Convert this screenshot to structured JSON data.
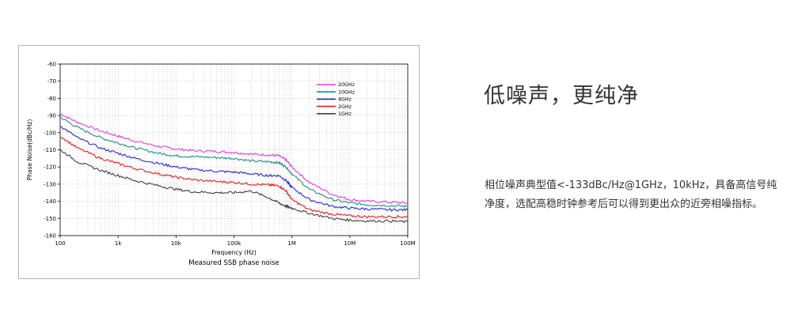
{
  "headline": "低噪声，更纯净",
  "description": {
    "line1": "相位噪声典型值<-133dBc/Hz@1GHz，10kHz，具备高信号纯",
    "line2": "净度，选配高稳时钟参考后可以得到更出众的近旁相噪指标。"
  },
  "chart_data": {
    "type": "line",
    "title": "Measured SSB phase noise",
    "xlabel": "Frequency (Hz)",
    "ylabel": "Phase Noise(dBc/Hz)",
    "x_scale": "log",
    "xlim": [
      100,
      100000000
    ],
    "ylim": [
      -160,
      -60
    ],
    "x_ticks": [
      100,
      1000,
      10000,
      100000,
      1000000,
      10000000,
      100000000
    ],
    "x_tick_labels": [
      "100",
      "1k",
      "10k",
      "100k",
      "1M",
      "10M",
      "100M"
    ],
    "y_ticks": [
      -60,
      -70,
      -80,
      -90,
      -100,
      -110,
      -120,
      -130,
      -140,
      -150,
      -160
    ],
    "y_tick_labels": [
      "-60",
      "-70",
      "-80",
      "-90",
      "-100",
      "-110",
      "-120",
      "-130",
      "-140",
      "-150",
      "-160"
    ],
    "grid": true,
    "legend_position": "top-right",
    "x": [
      100,
      200,
      500,
      1000,
      2000,
      5000,
      10000,
      20000,
      50000,
      100000,
      200000,
      400000,
      600000,
      800000,
      1000000,
      2000000,
      5000000,
      10000000,
      20000000,
      50000000,
      100000000
    ],
    "series": [
      {
        "name": "20GHz",
        "color": "#e040e0",
        "values": [
          -89,
          -94,
          -99,
          -102,
          -105,
          -108,
          -109.5,
          -110.5,
          -111,
          -111.5,
          -112.5,
          -113,
          -113.5,
          -116,
          -120,
          -129,
          -136,
          -139,
          -140,
          -140.5,
          -141
        ]
      },
      {
        "name": "10GHz",
        "color": "#208f80",
        "values": [
          -91,
          -97,
          -103,
          -106,
          -109,
          -112,
          -113.5,
          -114,
          -114.5,
          -115,
          -116.5,
          -117,
          -117.5,
          -120,
          -124,
          -133,
          -139,
          -141,
          -142,
          -142.5,
          -143
        ]
      },
      {
        "name": "4GHz",
        "color": "#2828d0",
        "values": [
          -96,
          -103,
          -109,
          -112,
          -115,
          -118,
          -120,
          -121.5,
          -122.5,
          -123,
          -124,
          -125,
          -125,
          -128,
          -132,
          -139,
          -143,
          -144,
          -144.5,
          -145,
          -145
        ]
      },
      {
        "name": "2GHz",
        "color": "#e02020",
        "values": [
          -102,
          -109,
          -115,
          -118,
          -121,
          -124,
          -126,
          -127.5,
          -128.5,
          -129,
          -130,
          -130.5,
          -131,
          -134,
          -139,
          -145,
          -147.5,
          -148.5,
          -149,
          -149,
          -149
        ]
      },
      {
        "name": "1GHz",
        "color": "#404040",
        "values": [
          -110,
          -117,
          -122,
          -125,
          -128,
          -131,
          -133,
          -134.5,
          -135,
          -135,
          -134,
          -138,
          -141,
          -143,
          -144,
          -147,
          -150,
          -151,
          -151.5,
          -151.5,
          -152
        ]
      }
    ]
  }
}
